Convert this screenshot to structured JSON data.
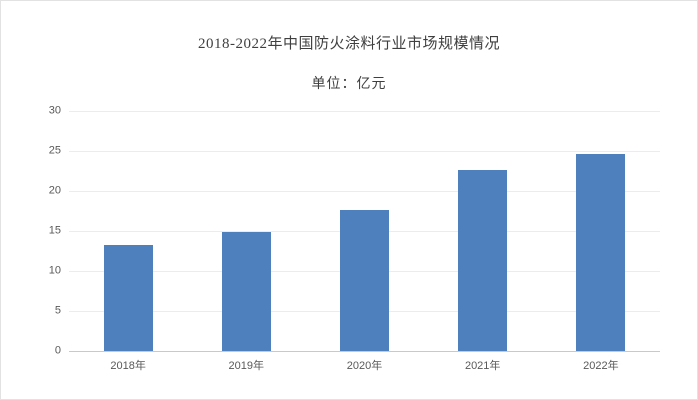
{
  "chart_data": {
    "type": "bar",
    "title": "2018-2022年中国防火涂料行业市场规模情况",
    "subtitle": "单位：亿元",
    "categories": [
      "2018年",
      "2019年",
      "2020年",
      "2021年",
      "2022年"
    ],
    "values": [
      13.2,
      14.9,
      17.6,
      22.6,
      24.6
    ],
    "xlabel": "",
    "ylabel": "",
    "ylim": [
      0,
      30
    ],
    "ytick_step": 5,
    "yticks": [
      0,
      5,
      10,
      15,
      20,
      25,
      30
    ],
    "grid": true,
    "legend": "none",
    "colors": {
      "bar": "#4f80be",
      "gridline": "#ececec",
      "axis_line": "#c9c9c9",
      "tick_text": "#595959",
      "title_text": "#3f3f3f"
    }
  }
}
